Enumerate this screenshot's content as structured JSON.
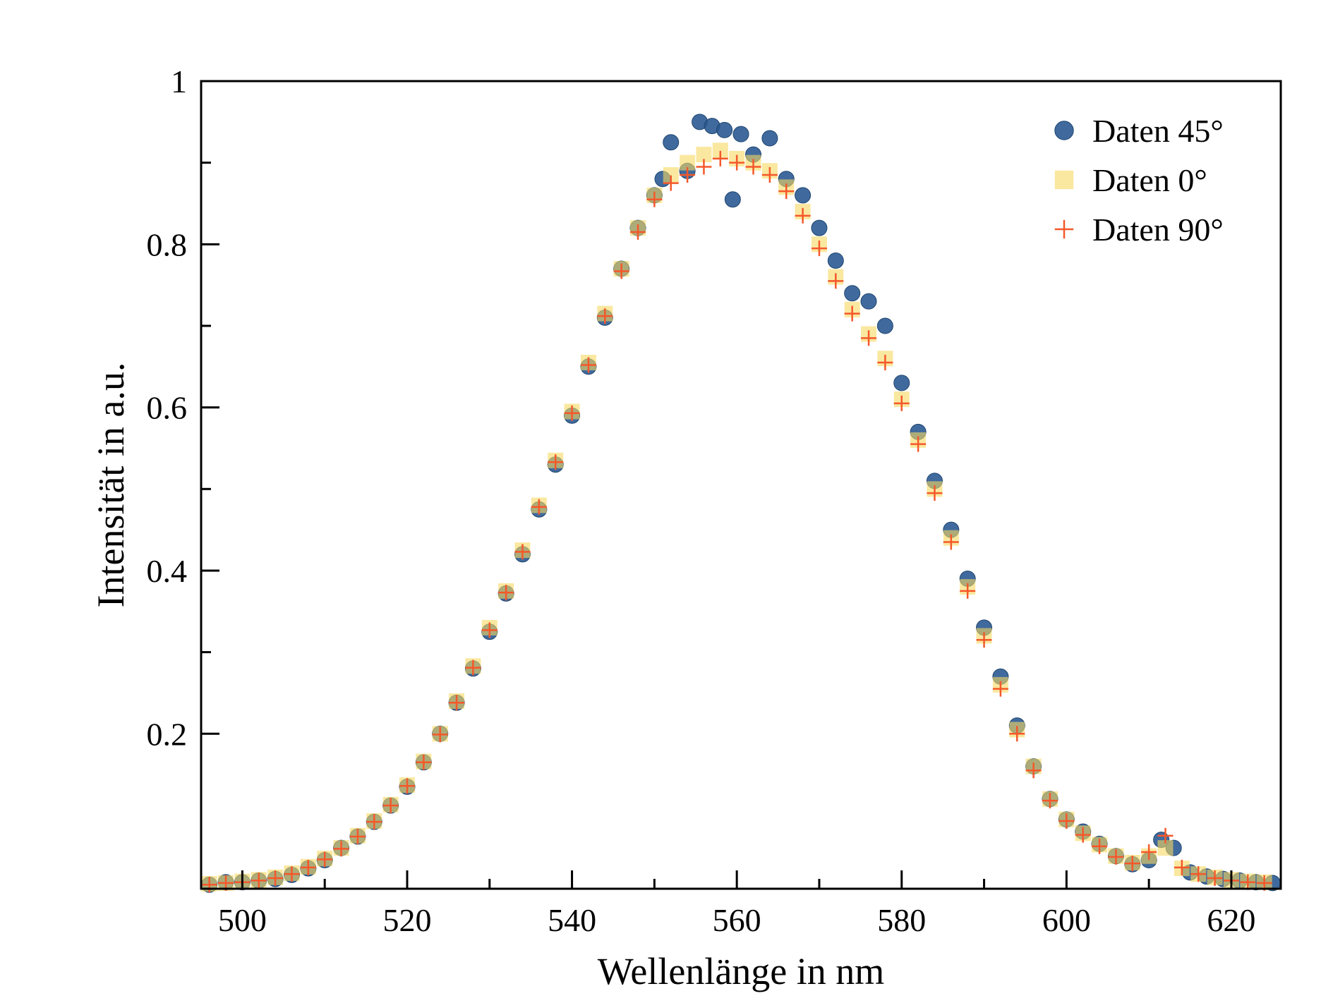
{
  "chart_data": {
    "type": "scatter",
    "title": "",
    "xlabel": "Wellenlänge in nm",
    "ylabel": "Intensität in a.u.",
    "xlim": [
      495,
      626
    ],
    "ylim": [
      0.01,
      1.0
    ],
    "x_ticks": [
      500,
      520,
      540,
      560,
      580,
      600,
      620
    ],
    "x_tick_labels": [
      "500",
      "520",
      "540",
      "560",
      "580",
      "600",
      "620"
    ],
    "y_ticks": [
      0.2,
      0.4,
      0.6,
      0.8,
      1.0
    ],
    "y_tick_labels": [
      "0.2",
      "0.4",
      "0.6",
      "0.8",
      "1"
    ],
    "grid": false,
    "legend_position": "top-right",
    "series": [
      {
        "name": "Daten 45°",
        "marker": "circle",
        "color": "#2b5a92",
        "x": [
          496,
          498,
          500,
          502,
          504,
          506,
          508,
          510,
          512,
          514,
          516,
          518,
          520,
          522,
          524,
          526,
          528,
          530,
          532,
          534,
          536,
          538,
          540,
          542,
          544,
          546,
          548,
          550,
          551,
          552,
          554,
          555.5,
          557,
          558.5,
          559.5,
          560.5,
          562,
          564,
          566,
          568,
          570,
          572,
          574,
          576,
          578,
          580,
          582,
          584,
          586,
          588,
          590,
          592,
          594,
          596,
          598,
          600,
          602,
          604,
          606,
          608,
          610,
          611.5,
          613,
          615,
          617,
          619,
          621,
          623,
          625
        ],
        "y": [
          0.015,
          0.018,
          0.018,
          0.02,
          0.022,
          0.027,
          0.035,
          0.045,
          0.06,
          0.074,
          0.092,
          0.112,
          0.135,
          0.165,
          0.2,
          0.238,
          0.28,
          0.325,
          0.372,
          0.42,
          0.475,
          0.53,
          0.59,
          0.65,
          0.71,
          0.77,
          0.82,
          0.86,
          0.88,
          0.925,
          0.89,
          0.95,
          0.945,
          0.94,
          0.855,
          0.935,
          0.91,
          0.93,
          0.88,
          0.86,
          0.82,
          0.78,
          0.74,
          0.73,
          0.7,
          0.63,
          0.57,
          0.51,
          0.45,
          0.39,
          0.33,
          0.27,
          0.21,
          0.16,
          0.12,
          0.095,
          0.08,
          0.065,
          0.05,
          0.04,
          0.045,
          0.07,
          0.06,
          0.03,
          0.025,
          0.022,
          0.02,
          0.018,
          0.017
        ]
      },
      {
        "name": "Daten 0°",
        "marker": "square",
        "color": "#f6d860",
        "x": [
          496,
          498,
          500,
          502,
          504,
          506,
          508,
          510,
          512,
          514,
          516,
          518,
          520,
          522,
          524,
          526,
          528,
          530,
          532,
          534,
          536,
          538,
          540,
          542,
          544,
          546,
          548,
          550,
          552,
          554,
          556,
          558,
          560,
          562,
          564,
          566,
          568,
          570,
          572,
          574,
          576,
          578,
          580,
          582,
          584,
          586,
          588,
          590,
          592,
          594,
          596,
          598,
          600,
          602,
          604,
          606,
          608,
          610,
          612,
          614,
          616,
          618,
          620,
          622,
          624
        ],
        "y": [
          0.016,
          0.017,
          0.019,
          0.021,
          0.024,
          0.029,
          0.037,
          0.047,
          0.06,
          0.075,
          0.093,
          0.113,
          0.137,
          0.166,
          0.2,
          0.24,
          0.283,
          0.33,
          0.375,
          0.425,
          0.48,
          0.535,
          0.595,
          0.655,
          0.715,
          0.77,
          0.82,
          0.86,
          0.885,
          0.9,
          0.91,
          0.915,
          0.905,
          0.9,
          0.89,
          0.87,
          0.84,
          0.8,
          0.76,
          0.72,
          0.69,
          0.66,
          0.61,
          0.56,
          0.5,
          0.44,
          0.38,
          0.32,
          0.26,
          0.205,
          0.16,
          0.12,
          0.095,
          0.078,
          0.064,
          0.05,
          0.042,
          0.05,
          0.06,
          0.035,
          0.028,
          0.024,
          0.021,
          0.019,
          0.018
        ]
      },
      {
        "name": "Daten 90°",
        "marker": "plus",
        "color": "#f5582a",
        "x": [
          496,
          498,
          500,
          502,
          504,
          506,
          508,
          510,
          512,
          514,
          516,
          518,
          520,
          522,
          524,
          526,
          528,
          530,
          532,
          534,
          536,
          538,
          540,
          542,
          544,
          546,
          548,
          550,
          552,
          554,
          556,
          558,
          560,
          562,
          564,
          566,
          568,
          570,
          572,
          574,
          576,
          578,
          580,
          582,
          584,
          586,
          588,
          590,
          592,
          594,
          596,
          598,
          600,
          602,
          604,
          606,
          608,
          610,
          612,
          614,
          616,
          618,
          620,
          622,
          624
        ],
        "y": [
          0.015,
          0.017,
          0.018,
          0.02,
          0.023,
          0.028,
          0.036,
          0.046,
          0.059,
          0.074,
          0.092,
          0.112,
          0.136,
          0.165,
          0.199,
          0.238,
          0.281,
          0.327,
          0.373,
          0.423,
          0.478,
          0.533,
          0.593,
          0.652,
          0.712,
          0.767,
          0.815,
          0.855,
          0.875,
          0.885,
          0.895,
          0.905,
          0.9,
          0.895,
          0.885,
          0.865,
          0.835,
          0.795,
          0.755,
          0.715,
          0.685,
          0.655,
          0.605,
          0.555,
          0.495,
          0.435,
          0.375,
          0.315,
          0.255,
          0.2,
          0.155,
          0.118,
          0.093,
          0.076,
          0.062,
          0.049,
          0.041,
          0.055,
          0.075,
          0.036,
          0.028,
          0.023,
          0.02,
          0.018,
          0.017
        ]
      }
    ]
  }
}
